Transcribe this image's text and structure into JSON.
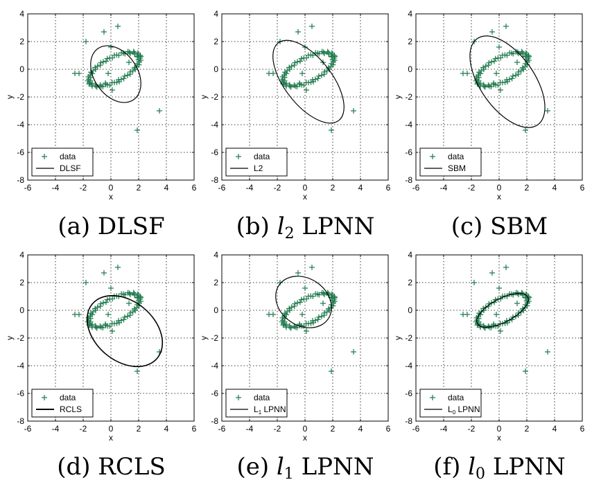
{
  "scatter_data": {
    "x": [
      -1.8,
      -0.5,
      0.5,
      -2.6,
      -2.3,
      -0.4,
      0.1,
      0.6,
      -0.2,
      1.3,
      1.9,
      3.5,
      1.9,
      0.0
    ],
    "y": [
      2.0,
      2.7,
      3.1,
      -0.3,
      -0.3,
      -1.0,
      -1.5,
      -0.9,
      -0.3,
      0.5,
      0.9,
      -3.0,
      -4.4,
      1.6
    ]
  },
  "ring": {
    "cx": 0.25,
    "cy": 0.0,
    "a": 2.0,
    "b": 0.85,
    "theta_deg": 28
  },
  "chart_data": [
    {
      "type": "scatter",
      "panel": "a",
      "xlabel": "x",
      "ylabel": "y",
      "xlim": [
        -6,
        6
      ],
      "ylim": [
        -8,
        4
      ],
      "xticks": [
        -6,
        -4,
        -2,
        0,
        2,
        4,
        6
      ],
      "yticks": [
        4,
        2,
        0,
        -2,
        -4,
        -6,
        -8
      ],
      "grid": true,
      "legend_position": "bottom-left",
      "series": [
        {
          "name": "data",
          "marker": "+",
          "color": "#1e7a4c"
        },
        {
          "name": "DLSF",
          "style": "line",
          "color": "#000000"
        }
      ],
      "ellipse": {
        "cx": 0.35,
        "cy": -0.35,
        "a": 2.25,
        "b": 1.55,
        "theta_deg": -55
      }
    },
    {
      "type": "scatter",
      "panel": "b",
      "xlabel": "x",
      "ylabel": "y",
      "xlim": [
        -6,
        6
      ],
      "ylim": [
        -8,
        4
      ],
      "xticks": [
        -6,
        -4,
        -2,
        0,
        2,
        4,
        6
      ],
      "yticks": [
        4,
        2,
        0,
        -2,
        -4,
        -6,
        -8
      ],
      "grid": true,
      "legend_position": "bottom-left",
      "series": [
        {
          "name": "data",
          "marker": "+",
          "color": "#1e7a4c"
        },
        {
          "name": "L2",
          "style": "line",
          "color": "#000000"
        }
      ],
      "ellipse": {
        "cx": 0.25,
        "cy": -0.9,
        "a": 3.55,
        "b": 1.7,
        "theta_deg": -52
      }
    },
    {
      "type": "scatter",
      "panel": "c",
      "xlabel": "x",
      "ylabel": "y",
      "xlim": [
        -6,
        6
      ],
      "ylim": [
        -8,
        4
      ],
      "xticks": [
        -6,
        -4,
        -2,
        0,
        2,
        4,
        6
      ],
      "yticks": [
        4,
        2,
        0,
        -2,
        -4,
        -6,
        -8
      ],
      "grid": true,
      "legend_position": "bottom-left",
      "series": [
        {
          "name": "data",
          "marker": "+",
          "color": "#1e7a4c"
        },
        {
          "name": "SBM",
          "style": "line",
          "color": "#000000"
        }
      ],
      "ellipse": {
        "cx": 0.6,
        "cy": -0.9,
        "a": 3.8,
        "b": 1.95,
        "theta_deg": -55
      }
    },
    {
      "type": "scatter",
      "panel": "d",
      "xlabel": "x",
      "ylabel": "y",
      "xlim": [
        -6,
        6
      ],
      "ylim": [
        -8,
        4
      ],
      "xticks": [
        -6,
        -4,
        -2,
        0,
        2,
        4,
        6
      ],
      "yticks": [
        4,
        2,
        0,
        -2,
        -4,
        -6,
        -8
      ],
      "grid": true,
      "legend_position": "bottom-left",
      "series": [
        {
          "name": "data",
          "marker": "+",
          "color": "#1e7a4c"
        },
        {
          "name": "RCLS",
          "style": "line",
          "color": "#000000"
        }
      ],
      "ellipse": {
        "cx": 1.0,
        "cy": -1.5,
        "a": 3.05,
        "b": 2.15,
        "theta_deg": -40
      }
    },
    {
      "type": "scatter",
      "panel": "e",
      "xlabel": "x",
      "ylabel": "y",
      "xlim": [
        -6,
        6
      ],
      "ylim": [
        -8,
        4
      ],
      "xticks": [
        -6,
        -4,
        -2,
        0,
        2,
        4,
        6
      ],
      "yticks": [
        4,
        2,
        0,
        -2,
        -4,
        -6,
        -8
      ],
      "grid": true,
      "legend_position": "bottom-left",
      "series": [
        {
          "name": "data",
          "marker": "+",
          "color": "#1e7a4c"
        },
        {
          "name": "L1 LPNN",
          "style": "line",
          "color": "#000000"
        }
      ],
      "ellipse": {
        "cx": -0.1,
        "cy": 0.6,
        "a": 2.15,
        "b": 1.7,
        "theta_deg": -35
      }
    },
    {
      "type": "scatter",
      "panel": "f",
      "xlabel": "x",
      "ylabel": "y",
      "xlim": [
        -6,
        6
      ],
      "ylim": [
        -8,
        4
      ],
      "xticks": [
        -6,
        -4,
        -2,
        0,
        2,
        4,
        6
      ],
      "yticks": [
        4,
        2,
        0,
        -2,
        -4,
        -6,
        -8
      ],
      "grid": true,
      "legend_position": "bottom-left",
      "series": [
        {
          "name": "data",
          "marker": "+",
          "color": "#1e7a4c"
        },
        {
          "name": "L0 LPNN",
          "style": "line",
          "color": "#000000"
        }
      ],
      "ellipse": {
        "cx": 0.25,
        "cy": 0.0,
        "a": 2.05,
        "b": 0.85,
        "theta_deg": 28
      }
    }
  ],
  "captions": [
    {
      "prefix": "(a) DLSF",
      "symbol": "",
      "sub": "",
      "suffix": ""
    },
    {
      "prefix": "(b) ",
      "symbol": "l",
      "sub": "2",
      "suffix": " LPNN"
    },
    {
      "prefix": "(c) SBM",
      "symbol": "",
      "sub": "",
      "suffix": ""
    },
    {
      "prefix": "(d) RCLS",
      "symbol": "",
      "sub": "",
      "suffix": ""
    },
    {
      "prefix": "(e) ",
      "symbol": "l",
      "sub": "1",
      "suffix": " LPNN"
    },
    {
      "prefix": "(f) ",
      "symbol": "l",
      "sub": "0",
      "suffix": " LPNN"
    }
  ],
  "legend_labels": [
    {
      "data": "data",
      "fit": "DLSF",
      "sub": ""
    },
    {
      "data": "data",
      "fit": "L2",
      "sub": ""
    },
    {
      "data": "data",
      "fit": "SBM",
      "sub": ""
    },
    {
      "data": "data",
      "fit": "RCLS",
      "sub": ""
    },
    {
      "data": "data",
      "fit": "L",
      "sub": "1",
      "post": " LPNN"
    },
    {
      "data": "data",
      "fit": "L",
      "sub": "0",
      "post": " LPNN"
    }
  ]
}
